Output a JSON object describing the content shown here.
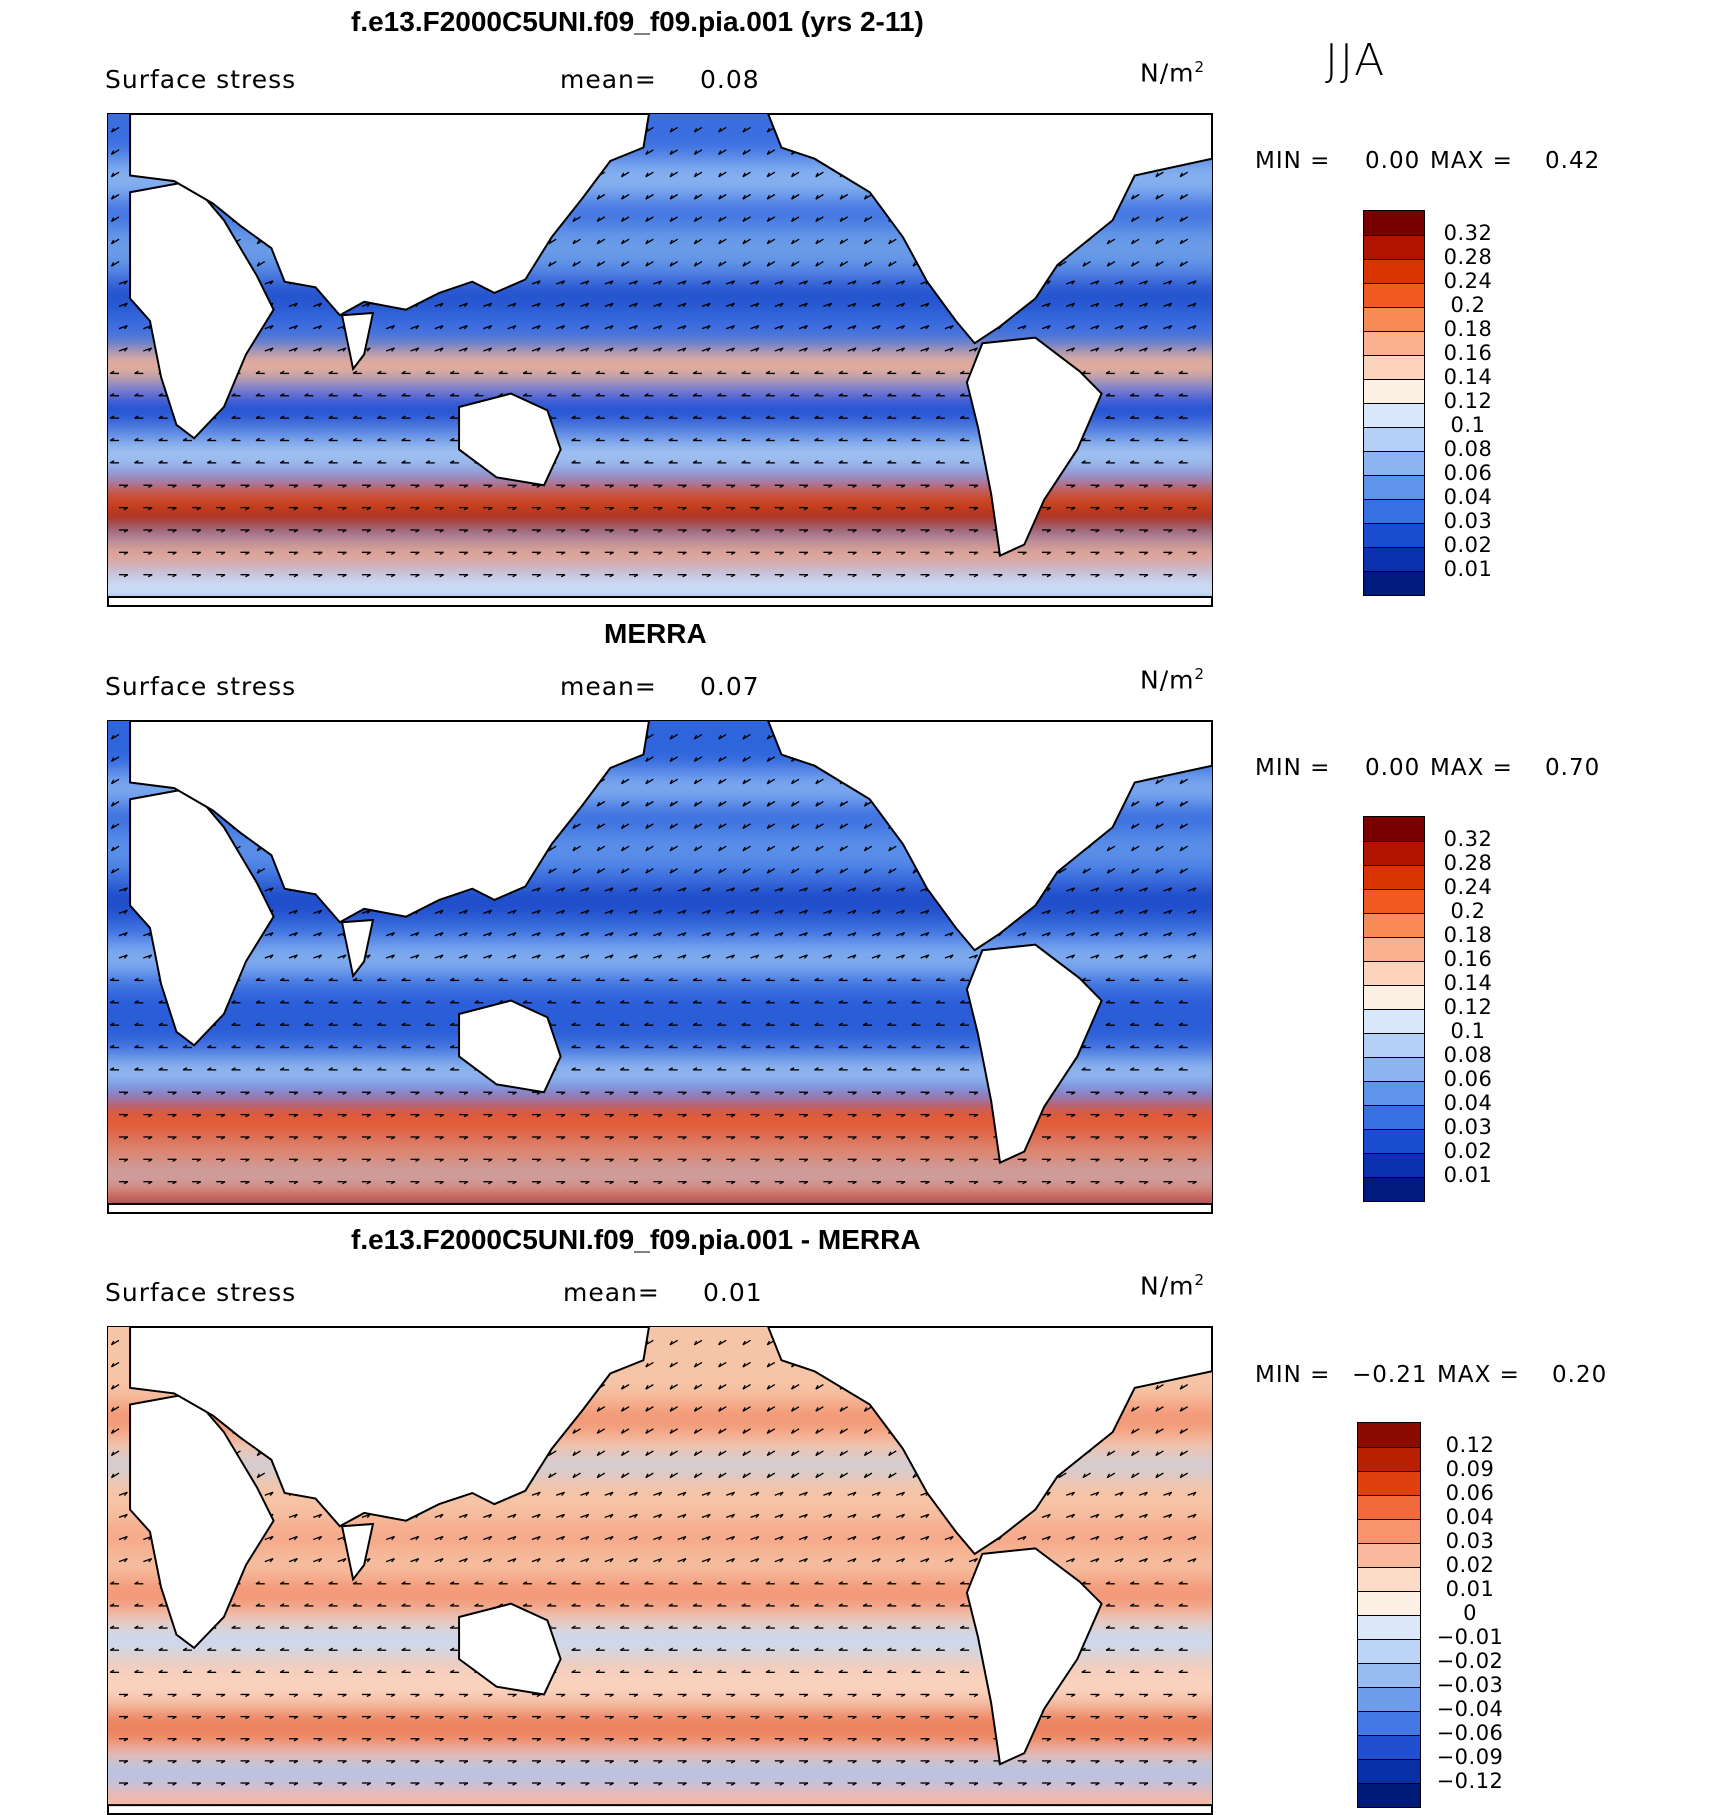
{
  "season": "JJA",
  "panels": [
    {
      "title": "f.e13.F2000C5UNI.f09_f09.pia.001 (yrs 2-11)",
      "variable": "Surface stress",
      "mean_label": "mean=",
      "mean_value": "0.08",
      "units_base": "N/m",
      "units_sup": "2",
      "min_label": "MIN =",
      "min_value": "0.00",
      "max_label": "MAX =",
      "max_value": "0.42",
      "colorbar_ticks": [
        "0.32",
        "0.28",
        "0.24",
        "0.2",
        "0.18",
        "0.16",
        "0.14",
        "0.12",
        "0.1",
        "0.08",
        "0.06",
        "0.04",
        "0.03",
        "0.02",
        "0.01"
      ],
      "colorbar_colors": [
        "#7a0000",
        "#b01400",
        "#d83400",
        "#f05a20",
        "#f88a55",
        "#fbb090",
        "#fcd4bc",
        "#fcefe3",
        "#d8e8fa",
        "#b4d0f6",
        "#8cb4f0",
        "#5e94ea",
        "#3670e2",
        "#1a4cd0",
        "#0a30b0",
        "#001a80"
      ],
      "map_style": "model"
    },
    {
      "title": "MERRA",
      "variable": "Surface stress",
      "mean_label": "mean=",
      "mean_value": "0.07",
      "units_base": "N/m",
      "units_sup": "2",
      "min_label": "MIN =",
      "min_value": "0.00",
      "max_label": "MAX =",
      "max_value": "0.70",
      "colorbar_ticks": [
        "0.32",
        "0.28",
        "0.24",
        "0.2",
        "0.18",
        "0.16",
        "0.14",
        "0.12",
        "0.1",
        "0.08",
        "0.06",
        "0.04",
        "0.03",
        "0.02",
        "0.01"
      ],
      "colorbar_colors": [
        "#7a0000",
        "#b01400",
        "#d83400",
        "#f05a20",
        "#f88a55",
        "#fbb090",
        "#fcd4bc",
        "#fcefe3",
        "#d8e8fa",
        "#b4d0f6",
        "#8cb4f0",
        "#5e94ea",
        "#3670e2",
        "#1a4cd0",
        "#0a30b0",
        "#001a80"
      ],
      "map_style": "obs"
    },
    {
      "title": "f.e13.F2000C5UNI.f09_f09.pia.001 - MERRA",
      "variable": "Surface stress",
      "mean_label": "mean=",
      "mean_value": "0.01",
      "units_base": "N/m",
      "units_sup": "2",
      "min_label": "MIN =",
      "min_value": "−0.21",
      "max_label": "MAX =",
      "max_value": "0.20",
      "colorbar_ticks": [
        "0.12",
        "0.09",
        "0.06",
        "0.04",
        "0.03",
        "0.02",
        "0.01",
        "0",
        "−0.01",
        "−0.02",
        "−0.03",
        "−0.04",
        "−0.06",
        "−0.09",
        "−0.12"
      ],
      "colorbar_colors": [
        "#8a0a00",
        "#b82000",
        "#e04010",
        "#f06a3a",
        "#f7946e",
        "#fab89c",
        "#fcdcc6",
        "#fcf0e4",
        "#dce8f8",
        "#bcd4f6",
        "#98bcf2",
        "#6e9cec",
        "#4478e4",
        "#2050d0",
        "#0a30a8",
        "#001a78"
      ],
      "map_style": "diff"
    }
  ]
}
